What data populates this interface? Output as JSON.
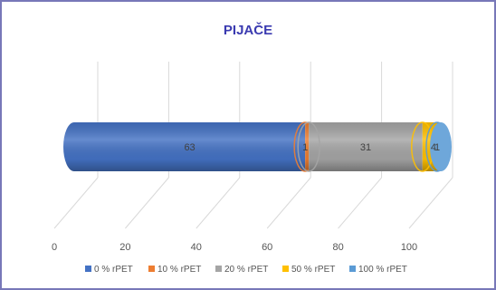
{
  "chart_data": {
    "type": "bar",
    "orientation": "horizontal-stacked-3d-cylinder",
    "title": "PIJAČE",
    "xlabel": "",
    "ylabel": "",
    "xlim": [
      0,
      100
    ],
    "x_ticks": [
      "0",
      "20",
      "40",
      "60",
      "80",
      "100"
    ],
    "categories": [
      ""
    ],
    "series": [
      {
        "name": "0 % rPET",
        "values": [
          63
        ],
        "label": "63",
        "color": "#4472C4"
      },
      {
        "name": "10 % rPET",
        "values": [
          1
        ],
        "label": "1",
        "color": "#ED7D31"
      },
      {
        "name": "20 % rPET",
        "values": [
          31
        ],
        "label": "31",
        "color": "#A5A5A5"
      },
      {
        "name": "50 % rPET",
        "values": [
          4
        ],
        "label": "4",
        "color": "#FFC000"
      },
      {
        "name": "100 % rPET",
        "values": [
          1
        ],
        "label": "1",
        "color": "#5B9BD5"
      }
    ],
    "grid": true,
    "legend": "bottom"
  }
}
